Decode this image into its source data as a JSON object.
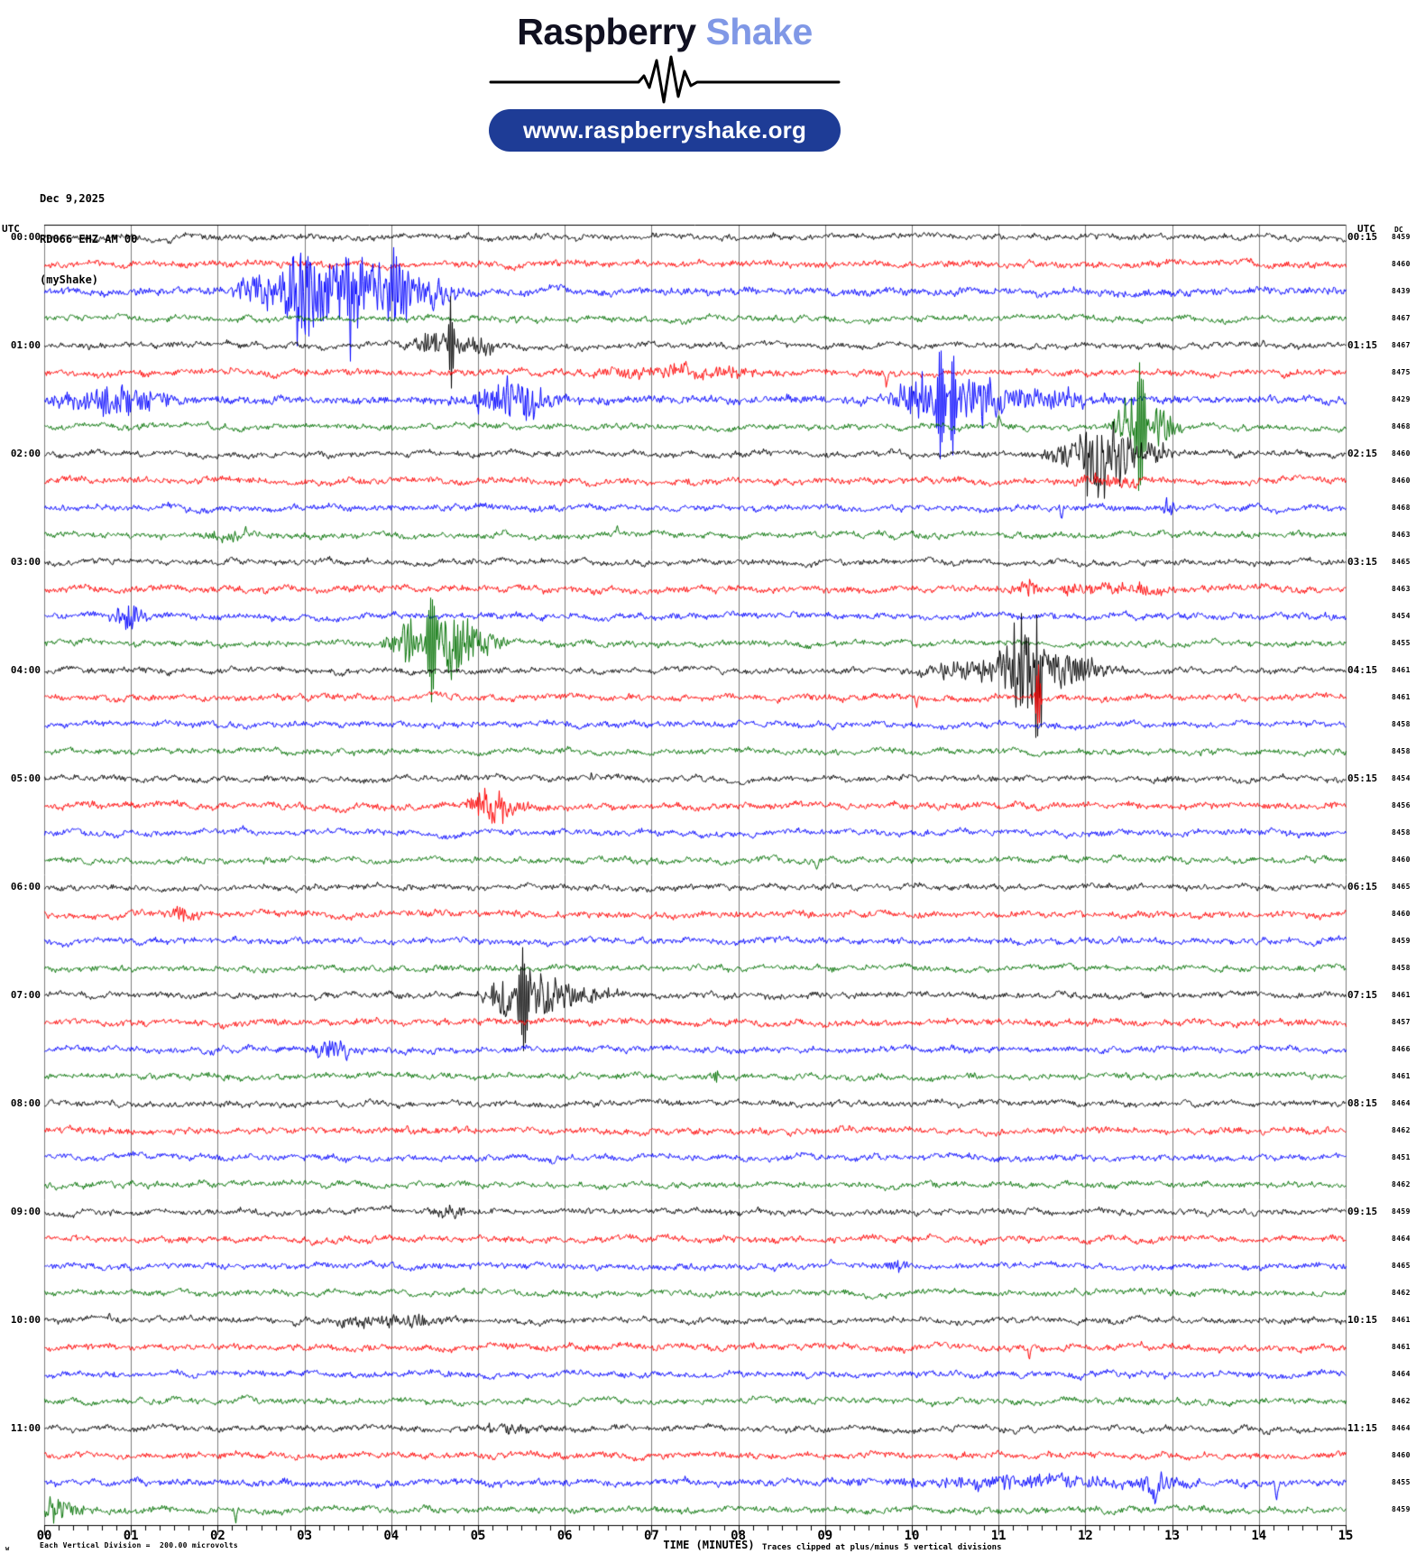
{
  "header": {
    "brand_word1": "Raspberry",
    "brand_word2": "Shake",
    "url_pill": "www.raspberryshake.org",
    "colors": {
      "brand_word2": "#8098e6",
      "pill_bg": "#1e3c96"
    }
  },
  "station": {
    "date": "Dec 9,2025",
    "code": "RD066 EHZ AM 00",
    "name": "(myShake)"
  },
  "labels": {
    "utc_left": "UTC",
    "utc_right": "UTC",
    "dc": "DC"
  },
  "footer": {
    "marker": "w",
    "left_note": "Each Vertical Division =  200.00 microvolts",
    "x_title": "TIME (MINUTES)",
    "clip_note": "Traces clipped at plus/minus 5 vertical divisions"
  },
  "chart_data": {
    "type": "line",
    "subtype": "helicorder",
    "title": "RD066 EHZ AM 00 (myShake) Dec 9,2025",
    "xlabel": "TIME (MINUTES)",
    "x_ticks": [
      "00",
      "01",
      "02",
      "03",
      "04",
      "05",
      "06",
      "07",
      "08",
      "09",
      "10",
      "11",
      "12",
      "13",
      "14",
      "15"
    ],
    "minutes_per_row": 15,
    "minor_ticks_per_minute": 6,
    "grid_color": "#7d7d7d",
    "clip_divisions": 5,
    "microvolts_per_division": "200.00",
    "trace_colors": {
      "black": "#000000",
      "red": "#ff0000",
      "blue": "#0000ff",
      "green": "#007000"
    },
    "rows": [
      {
        "label_left": "00:00",
        "label_right": "00:15",
        "color": "black",
        "dc": 8459,
        "noise": 2.2,
        "events": []
      },
      {
        "color": "red",
        "dc": 8460,
        "noise": 2.6,
        "events": []
      },
      {
        "color": "blue",
        "dc": 8439,
        "noise": 3.0,
        "events": [
          {
            "t": 2.5,
            "dur": 0.5,
            "amp": 16,
            "kind": "burst"
          },
          {
            "t": 2.95,
            "dur": 0.3,
            "amp": 48,
            "kind": "burst"
          },
          {
            "t": 3.2,
            "dur": 0.2,
            "amp": 30,
            "kind": "burst"
          },
          {
            "t": 3.55,
            "dur": 0.35,
            "amp": 46,
            "kind": "burst"
          },
          {
            "t": 4.0,
            "dur": 0.35,
            "amp": 38,
            "kind": "burst"
          },
          {
            "t": 4.5,
            "dur": 0.35,
            "amp": 16,
            "kind": "burst"
          }
        ]
      },
      {
        "color": "green",
        "dc": 8467,
        "noise": 2.2,
        "events": [
          {
            "t": 5.45,
            "dur": 0.08,
            "amp": -10,
            "kind": "vspike"
          }
        ]
      },
      {
        "label_left": "01:00",
        "label_right": "01:15",
        "color": "black",
        "dc": 8467,
        "noise": 2.2,
        "events": [
          {
            "t": 4.5,
            "dur": 0.3,
            "amp": 14,
            "kind": "burst"
          },
          {
            "t": 4.68,
            "dur": 0.1,
            "amp": 58,
            "kind": "spike"
          },
          {
            "t": 4.9,
            "dur": 0.35,
            "amp": 12,
            "kind": "burst"
          },
          {
            "t": 14.05,
            "dur": 0.04,
            "amp": 8,
            "kind": "vspike"
          }
        ]
      },
      {
        "color": "red",
        "dc": 8475,
        "noise": 2.6,
        "events": [
          {
            "t": 7.3,
            "dur": 1.5,
            "amp": 6,
            "kind": "burst"
          },
          {
            "t": 9.7,
            "dur": 0.05,
            "amp": -16,
            "kind": "vspike"
          }
        ]
      },
      {
        "color": "blue",
        "dc": 8429,
        "noise": 3.2,
        "events": [
          {
            "t": 0.8,
            "dur": 0.8,
            "amp": 16,
            "kind": "burst"
          },
          {
            "t": 5.4,
            "dur": 0.7,
            "amp": 18,
            "kind": "burst"
          },
          {
            "t": 10.05,
            "dur": 0.3,
            "amp": 26,
            "kind": "burst"
          },
          {
            "t": 10.33,
            "dur": 0.14,
            "amp": 85,
            "kind": "spike"
          },
          {
            "t": 10.47,
            "dur": 0.1,
            "amp": 85,
            "kind": "spike"
          },
          {
            "t": 10.75,
            "dur": 0.7,
            "amp": 22,
            "kind": "burst"
          },
          {
            "t": 11.6,
            "dur": 1.2,
            "amp": 8,
            "kind": "burst"
          }
        ]
      },
      {
        "color": "green",
        "dc": 8468,
        "noise": 2.2,
        "events": [
          {
            "t": 11.0,
            "dur": 0.05,
            "amp": 20,
            "kind": "vspike"
          },
          {
            "t": 12.5,
            "dur": 0.25,
            "amp": 26,
            "kind": "burst"
          },
          {
            "t": 12.63,
            "dur": 0.16,
            "amp": 95,
            "kind": "spike"
          },
          {
            "t": 12.85,
            "dur": 0.3,
            "amp": 22,
            "kind": "burst"
          }
        ]
      },
      {
        "label_left": "02:00",
        "label_right": "02:15",
        "color": "black",
        "dc": 8460,
        "noise": 2.2,
        "events": [
          {
            "t": 11.85,
            "dur": 0.4,
            "amp": 14,
            "kind": "burst"
          },
          {
            "t": 12.15,
            "dur": 0.3,
            "amp": 46,
            "kind": "burst"
          },
          {
            "t": 12.35,
            "dur": 0.25,
            "amp": 30,
            "kind": "burst"
          },
          {
            "t": 12.7,
            "dur": 0.4,
            "amp": 12,
            "kind": "burst"
          }
        ]
      },
      {
        "color": "red",
        "dc": 8460,
        "noise": 2.6,
        "events": [
          {
            "t": 12.3,
            "dur": 0.7,
            "amp": 5,
            "kind": "burst"
          }
        ]
      },
      {
        "color": "blue",
        "dc": 8468,
        "noise": 2.4,
        "events": [
          {
            "t": 11.72,
            "dur": 0.05,
            "amp": -22,
            "kind": "vspike"
          },
          {
            "t": 12.97,
            "dur": 0.1,
            "amp": 12,
            "kind": "burst"
          }
        ]
      },
      {
        "color": "green",
        "dc": 8463,
        "noise": 2.2,
        "events": [
          {
            "t": 2.15,
            "dur": 0.45,
            "amp": 5,
            "kind": "burst"
          },
          {
            "t": 6.6,
            "dur": 0.04,
            "amp": 10,
            "kind": "vspike"
          }
        ]
      },
      {
        "label_left": "03:00",
        "label_right": "03:15",
        "color": "black",
        "dc": 8465,
        "noise": 2.2,
        "events": []
      },
      {
        "color": "red",
        "dc": 8463,
        "noise": 2.6,
        "events": [
          {
            "t": 11.35,
            "dur": 0.25,
            "amp": 7,
            "kind": "burst"
          },
          {
            "t": 12.3,
            "dur": 1.4,
            "amp": 5,
            "kind": "burst"
          },
          {
            "t": 12.62,
            "dur": 0.08,
            "amp": 10,
            "kind": "spike"
          }
        ]
      },
      {
        "color": "blue",
        "dc": 8454,
        "noise": 2.4,
        "events": [
          {
            "t": 0.95,
            "dur": 0.3,
            "amp": 12,
            "kind": "burst"
          },
          {
            "t": 1.02,
            "dur": 0.04,
            "amp": -16,
            "kind": "vspike"
          }
        ]
      },
      {
        "color": "green",
        "dc": 8455,
        "noise": 2.2,
        "events": [
          {
            "t": 4.15,
            "dur": 0.3,
            "amp": 22,
            "kind": "burst"
          },
          {
            "t": 4.46,
            "dur": 0.16,
            "amp": 80,
            "kind": "spike"
          },
          {
            "t": 4.68,
            "dur": 0.3,
            "amp": 40,
            "kind": "burst"
          },
          {
            "t": 5.0,
            "dur": 0.4,
            "amp": 14,
            "kind": "burst"
          }
        ]
      },
      {
        "label_left": "04:00",
        "label_right": "04:15",
        "color": "black",
        "dc": 8461,
        "noise": 2.2,
        "events": [
          {
            "t": 10.7,
            "dur": 0.8,
            "amp": 10,
            "kind": "burst"
          },
          {
            "t": 11.3,
            "dur": 0.4,
            "amp": 45,
            "kind": "burst"
          },
          {
            "t": 11.45,
            "dur": 0.15,
            "amp": 62,
            "kind": "spike"
          },
          {
            "t": 11.75,
            "dur": 0.4,
            "amp": 20,
            "kind": "burst"
          },
          {
            "t": 12.1,
            "dur": 0.4,
            "amp": 8,
            "kind": "burst"
          }
        ]
      },
      {
        "color": "red",
        "dc": 8461,
        "noise": 2.6,
        "events": [
          {
            "t": 10.05,
            "dur": 0.05,
            "amp": -12,
            "kind": "vspike"
          },
          {
            "t": 11.45,
            "dur": 0.08,
            "amp": 55,
            "kind": "spike"
          }
        ]
      },
      {
        "color": "blue",
        "dc": 8458,
        "noise": 2.4,
        "events": []
      },
      {
        "color": "green",
        "dc": 8458,
        "noise": 2.2,
        "events": []
      },
      {
        "label_left": "05:00",
        "label_right": "05:15",
        "color": "black",
        "dc": 8454,
        "noise": 2.2,
        "events": [
          {
            "t": 6.3,
            "dur": 0.04,
            "amp": 8,
            "kind": "vspike"
          }
        ]
      },
      {
        "color": "red",
        "dc": 8456,
        "noise": 2.6,
        "events": [
          {
            "t": 5.0,
            "dur": 0.25,
            "amp": 10,
            "kind": "burst"
          },
          {
            "t": 5.2,
            "dur": 0.3,
            "amp": 20,
            "kind": "burst"
          },
          {
            "t": 5.45,
            "dur": 0.2,
            "amp": 8,
            "kind": "burst"
          }
        ]
      },
      {
        "color": "blue",
        "dc": 8458,
        "noise": 2.4,
        "events": []
      },
      {
        "color": "green",
        "dc": 8460,
        "noise": 2.2,
        "events": [
          {
            "t": 8.9,
            "dur": 0.05,
            "amp": -10,
            "kind": "vspike"
          }
        ]
      },
      {
        "label_left": "06:00",
        "label_right": "06:15",
        "color": "black",
        "dc": 8465,
        "noise": 2.2,
        "events": []
      },
      {
        "color": "red",
        "dc": 8460,
        "noise": 2.6,
        "events": [
          {
            "t": 1.6,
            "dur": 0.25,
            "amp": 7,
            "kind": "burst"
          }
        ]
      },
      {
        "color": "blue",
        "dc": 8459,
        "noise": 2.4,
        "events": []
      },
      {
        "color": "green",
        "dc": 8458,
        "noise": 2.2,
        "events": []
      },
      {
        "label_left": "07:00",
        "label_right": "07:15",
        "color": "black",
        "dc": 8461,
        "noise": 2.2,
        "events": [
          {
            "t": 5.3,
            "dur": 0.3,
            "amp": 20,
            "kind": "burst"
          },
          {
            "t": 5.52,
            "dur": 0.18,
            "amp": 75,
            "kind": "spike"
          },
          {
            "t": 5.75,
            "dur": 0.35,
            "amp": 26,
            "kind": "burst"
          },
          {
            "t": 6.2,
            "dur": 0.5,
            "amp": 8,
            "kind": "burst"
          }
        ]
      },
      {
        "color": "red",
        "dc": 8457,
        "noise": 2.6,
        "events": []
      },
      {
        "color": "blue",
        "dc": 8466,
        "noise": 2.4,
        "events": [
          {
            "t": 3.3,
            "dur": 0.3,
            "amp": 10,
            "kind": "burst"
          },
          {
            "t": 3.48,
            "dur": 0.05,
            "amp": -18,
            "kind": "vspike"
          }
        ]
      },
      {
        "color": "green",
        "dc": 8461,
        "noise": 2.2,
        "events": [
          {
            "t": 7.7,
            "dur": 0.15,
            "amp": 6,
            "kind": "burst"
          }
        ]
      },
      {
        "label_left": "08:00",
        "label_right": "08:15",
        "color": "black",
        "dc": 8464,
        "noise": 2.2,
        "events": []
      },
      {
        "color": "red",
        "dc": 8462,
        "noise": 2.6,
        "events": []
      },
      {
        "color": "blue",
        "dc": 8451,
        "noise": 2.4,
        "events": []
      },
      {
        "color": "green",
        "dc": 8462,
        "noise": 2.2,
        "events": []
      },
      {
        "label_left": "09:00",
        "label_right": "09:15",
        "color": "black",
        "dc": 8459,
        "noise": 2.2,
        "events": [
          {
            "t": 4.7,
            "dur": 0.25,
            "amp": 7,
            "kind": "burst"
          }
        ]
      },
      {
        "color": "red",
        "dc": 8464,
        "noise": 2.5,
        "events": []
      },
      {
        "color": "blue",
        "dc": 8465,
        "noise": 2.4,
        "events": [
          {
            "t": 9.8,
            "dur": 0.2,
            "amp": 6,
            "kind": "burst"
          }
        ]
      },
      {
        "color": "green",
        "dc": 8462,
        "noise": 2.2,
        "events": []
      },
      {
        "label_left": "10:00",
        "label_right": "10:15",
        "color": "black",
        "dc": 8461,
        "noise": 2.2,
        "events": [
          {
            "t": 0.75,
            "dur": 0.04,
            "amp": 10,
            "kind": "vspike"
          },
          {
            "t": 3.7,
            "dur": 0.6,
            "amp": 6,
            "kind": "burst"
          },
          {
            "t": 4.3,
            "dur": 0.5,
            "amp": 7,
            "kind": "burst"
          }
        ]
      },
      {
        "color": "red",
        "dc": 8461,
        "noise": 2.6,
        "events": [
          {
            "t": 11.35,
            "dur": 0.05,
            "amp": -15,
            "kind": "vspike"
          }
        ]
      },
      {
        "color": "blue",
        "dc": 8464,
        "noise": 2.4,
        "events": []
      },
      {
        "color": "green",
        "dc": 8462,
        "noise": 2.2,
        "events": []
      },
      {
        "label_left": "11:00",
        "label_right": "11:15",
        "color": "black",
        "dc": 8464,
        "noise": 2.2,
        "events": [
          {
            "t": 5.3,
            "dur": 0.5,
            "amp": 5,
            "kind": "burst"
          }
        ]
      },
      {
        "color": "red",
        "dc": 8460,
        "noise": 2.5,
        "events": []
      },
      {
        "color": "blue",
        "dc": 8455,
        "noise": 2.8,
        "events": [
          {
            "t": 11.3,
            "dur": 2.2,
            "amp": 6,
            "kind": "burst"
          },
          {
            "t": 12.78,
            "dur": 0.12,
            "amp": -20,
            "kind": "vspike"
          },
          {
            "t": 12.85,
            "dur": 0.3,
            "amp": 12,
            "kind": "burst"
          },
          {
            "t": 14.2,
            "dur": 0.06,
            "amp": -22,
            "kind": "vspike"
          }
        ]
      },
      {
        "color": "green",
        "dc": 8459,
        "noise": 2.4,
        "events": [
          {
            "t": 0.15,
            "dur": 0.35,
            "amp": 12,
            "kind": "burst"
          },
          {
            "t": 2.2,
            "dur": 0.05,
            "amp": -22,
            "kind": "vspike"
          }
        ]
      }
    ]
  }
}
